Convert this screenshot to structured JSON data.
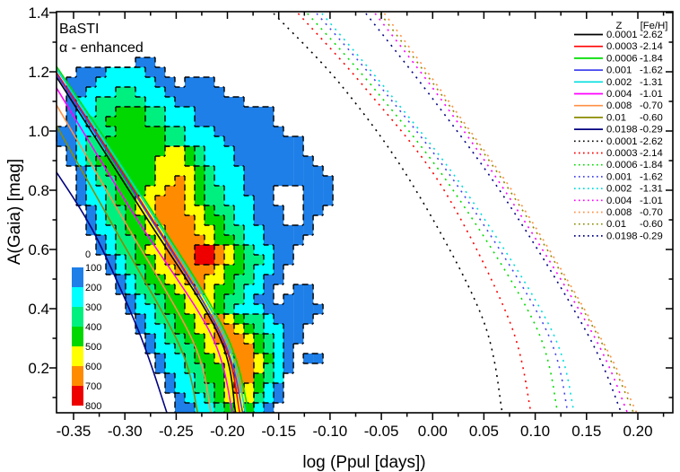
{
  "figure": {
    "title": "BaSTI",
    "subtitle": "α - enhanced"
  },
  "axes": {
    "x": {
      "label": "log (Ppul [days])",
      "major_values": [
        -0.35,
        -0.3,
        -0.25,
        -0.2,
        -0.15,
        -0.1,
        -0.05,
        0.0,
        0.05,
        0.1,
        0.15,
        0.2
      ],
      "major_labels": [
        "-0.35",
        "-0.30",
        "-0.25",
        "-0.20",
        "-0.15",
        "-0.10",
        "-0.05",
        "0.00",
        "0.05",
        "0.10",
        "0.15",
        "0.20"
      ],
      "minor_values": [
        -0.325,
        -0.275,
        -0.225,
        -0.175,
        -0.125,
        -0.075,
        -0.025,
        0.025,
        0.075,
        0.125,
        0.175,
        0.225
      ],
      "range": [
        -0.3666,
        0.234
      ]
    },
    "y": {
      "label": "A(Gaia) [mag]",
      "major_values": [
        0.2,
        0.4,
        0.6,
        0.8,
        1.0,
        1.2,
        1.4
      ],
      "major_labels": [
        "0.2",
        "0.4",
        "0.6",
        "0.8",
        "1.0",
        "1.2",
        "1.4"
      ],
      "minor_values": [
        0.1,
        0.3,
        0.5,
        0.7,
        0.9,
        1.1,
        1.3
      ],
      "range": [
        0.048,
        1.4
      ]
    }
  },
  "colorbar": {
    "labels": [
      "0",
      "100",
      "200",
      "300",
      "400",
      "500",
      "600",
      "700",
      "800"
    ],
    "colors": [
      "#1E7FE8",
      "#00FFFF",
      "#00F07F",
      "#00D800",
      "#FFFF00",
      "#FF8C00",
      "#EE0000"
    ]
  },
  "legend": {
    "header_z": "Z",
    "header_feh": "[Fe/H]",
    "entries": [
      {
        "z": "0.0001",
        "feh": "-2.62",
        "color": "#000000"
      },
      {
        "z": "0.0003",
        "feh": "-2.14",
        "color": "#FF0000"
      },
      {
        "z": "0.0006",
        "feh": "-1.84",
        "color": "#00DD00"
      },
      {
        "z": "0.001",
        "feh": "-1.62",
        "color": "#4444EE"
      },
      {
        "z": "0.002",
        "feh": "-1.31",
        "color": "#00DDDD"
      },
      {
        "z": "0.004",
        "feh": "-1.01",
        "color": "#FF00FF"
      },
      {
        "z": "0.008",
        "feh": "-0.70",
        "color": "#FF9044"
      },
      {
        "z": "0.01",
        "feh": "-0.60",
        "color": "#8B8B00"
      },
      {
        "z": "0.0198",
        "feh": "-0.29",
        "color": "#000080"
      }
    ]
  },
  "chart_data": {
    "type": "heatmap",
    "title": "BaSTI α-enhanced pulsation model edges over observed star-count density map",
    "xlabel": "log (Ppul [days])",
    "ylabel": "A(Gaia) [mag]",
    "xlim": [
      -0.3666,
      0.234
    ],
    "ylim": [
      0.048,
      1.4
    ],
    "grid": false,
    "legend_position": "top-right-inside",
    "density_levels": [
      0,
      100,
      200,
      300,
      400,
      500,
      600,
      700,
      800
    ],
    "density_colors": [
      "#1E7FE8",
      "#00FFFF",
      "#00F07F",
      "#00D800",
      "#FFFF00",
      "#FF8C00",
      "#EE0000"
    ],
    "contour_style": "dashed-black",
    "heatmap_grid": {
      "x0": -0.3666,
      "y_top": 1.2485,
      "cell_dx": 0.00962,
      "cell_dy": 0.033333,
      "rows": [
        "0000000011000000000000000000",
        "0011122221100000000000000000",
        "0111222222110111000000000000",
        "0112223322211111100000000000",
        "0122333332221111111000000000",
        "0122334443322211111111000000",
        "0123344443322211111111000000",
        "1122334444433222111111100000",
        "1123344444433222211111111000",
        "0123344444455432221111111000",
        "0123444444555432221111111100",
        "0012344444555543222111111110",
        "0012334444556543222111111111",
        "0012234445566543322111000111",
        "0012234455666543322211000111",
        "0001233455666554332211100110",
        "0001233445666654432211100100",
        "0001223445566655433221111100",
        "0000123344566665443221111000",
        "0000123345566677654322110000",
        "0000012344566677654332110000",
        "0000012334556666544322100000",
        "0000001234455665543321100000",
        "0000001233445565443221001100",
        "0000000123344555433211011100",
        "0000000122344555432221111110",
        "0000000012334456654332111100",
        "0000000012234455665432211000",
        "0000000001233445666543211000",
        "0000000001223345566643210000",
        "0000000000122344556654210110",
        "0000000000122334456653210000",
        "0000000000012234456643200000",
        "0000000000012233456542100000",
        "0000000000001223455532100000",
        "0000000000001122345421000000"
      ]
    },
    "solid_curves": [
      {
        "z": "0.0001",
        "feh": "-2.62",
        "color": "#000000",
        "points": [
          [
            -0.3666,
            1.182
          ],
          [
            -0.286,
            0.745
          ],
          [
            -0.209,
            0.315
          ],
          [
            -0.192,
            0.048
          ]
        ]
      },
      {
        "z": "0.0003",
        "feh": "-2.14",
        "color": "#FF0000",
        "points": [
          [
            -0.3666,
            1.197
          ],
          [
            -0.284,
            0.761
          ],
          [
            -0.2075,
            0.318
          ],
          [
            -0.188,
            0.048
          ]
        ]
      },
      {
        "z": "0.0006",
        "feh": "-1.84",
        "color": "#00DD00",
        "points": [
          [
            -0.3666,
            1.218
          ],
          [
            -0.282,
            0.776
          ],
          [
            -0.203,
            0.327
          ],
          [
            -0.179,
            0.048
          ]
        ]
      },
      {
        "z": "0.001",
        "feh": "-1.62",
        "color": "#4444EE",
        "points": [
          [
            -0.3666,
            1.191
          ],
          [
            -0.2836,
            0.752
          ],
          [
            -0.2066,
            0.315
          ],
          [
            -0.185,
            0.048
          ]
        ]
      },
      {
        "z": "0.002",
        "feh": "-1.31",
        "color": "#00DDDD",
        "points": [
          [
            -0.3666,
            1.209
          ],
          [
            -0.2827,
            0.77
          ],
          [
            -0.2049,
            0.324
          ],
          [
            -0.182,
            0.048
          ]
        ]
      },
      {
        "z": "0.004",
        "feh": "-1.01",
        "color": "#FF00FF",
        "points": [
          [
            -0.3666,
            1.145
          ],
          [
            -0.2906,
            0.715
          ],
          [
            -0.2162,
            0.315
          ],
          [
            -0.195,
            0.048
          ]
        ]
      },
      {
        "z": "0.008",
        "feh": "-0.70",
        "color": "#FF9044",
        "points": [
          [
            -0.3666,
            1.088
          ],
          [
            -0.3037,
            0.715
          ],
          [
            -0.2337,
            0.291
          ],
          [
            -0.216,
            0.048
          ]
        ]
      },
      {
        "z": "0.01",
        "feh": "-0.60",
        "color": "#8B8B00",
        "points": [
          [
            -0.3666,
            1.018
          ],
          [
            -0.3124,
            0.685
          ],
          [
            -0.2468,
            0.276
          ],
          [
            -0.229,
            0.048
          ]
        ]
      },
      {
        "z": "0.0198",
        "feh": "-0.29",
        "color": "#000080",
        "points": [
          [
            -0.3666,
            0.861
          ],
          [
            -0.3299,
            0.655
          ],
          [
            -0.2862,
            0.321
          ],
          [
            -0.259,
            0.048
          ]
        ]
      }
    ],
    "dotted_curves": [
      {
        "z": "0.0001",
        "feh": "-2.62",
        "color": "#000000",
        "points": [
          [
            -0.155,
            1.397
          ],
          [
            -0.089,
            1.154
          ],
          [
            -0.02,
            0.821
          ],
          [
            0.048,
            0.373
          ],
          [
            0.068,
            0.048
          ]
        ]
      },
      {
        "z": "0.0003",
        "feh": "-2.14",
        "color": "#FF0000",
        "points": [
          [
            -0.131,
            1.397
          ],
          [
            -0.066,
            1.146
          ],
          [
            0.009,
            0.812
          ],
          [
            0.075,
            0.358
          ],
          [
            0.096,
            0.048
          ]
        ]
      },
      {
        "z": "0.0006",
        "feh": "-1.84",
        "color": "#00DD00",
        "points": [
          [
            -0.122,
            1.397
          ],
          [
            -0.056,
            1.139
          ],
          [
            0.02,
            0.8
          ],
          [
            0.1,
            0.345
          ],
          [
            0.122,
            0.048
          ]
        ]
      },
      {
        "z": "0.001",
        "feh": "-1.62",
        "color": "#4444EE",
        "points": [
          [
            -0.113,
            1.397
          ],
          [
            -0.047,
            1.133
          ],
          [
            0.029,
            0.791
          ],
          [
            0.11,
            0.333
          ],
          [
            0.132,
            0.048
          ]
        ]
      },
      {
        "z": "0.002",
        "feh": "-1.31",
        "color": "#00DDDD",
        "points": [
          [
            -0.108,
            1.397
          ],
          [
            -0.042,
            1.127
          ],
          [
            0.035,
            0.782
          ],
          [
            0.116,
            0.327
          ],
          [
            0.138,
            0.048
          ]
        ]
      },
      {
        "z": "0.004",
        "feh": "-1.01",
        "color": "#FF00FF",
        "points": [
          [
            -0.056,
            1.397
          ],
          [
            0.009,
            1.103
          ],
          [
            0.078,
            0.758
          ],
          [
            0.157,
            0.309
          ],
          [
            0.19,
            0.048
          ]
        ]
      },
      {
        "z": "0.008",
        "feh": "-0.70",
        "color": "#FF9044",
        "points": [
          [
            -0.047,
            1.397
          ],
          [
            0.017,
            1.094
          ],
          [
            0.087,
            0.748
          ],
          [
            0.164,
            0.3
          ],
          [
            0.199,
            0.048
          ]
        ]
      },
      {
        "z": "0.01",
        "feh": "-0.60",
        "color": "#8B8B00",
        "points": [
          [
            -0.051,
            1.397
          ],
          [
            0.014,
            1.097
          ],
          [
            0.084,
            0.752
          ],
          [
            0.162,
            0.303
          ],
          [
            0.196,
            0.048
          ]
        ]
      },
      {
        "z": "0.0198",
        "feh": "-0.29",
        "color": "#000080",
        "points": [
          [
            -0.065,
            1.397
          ],
          [
            0.0,
            1.109
          ],
          [
            0.071,
            0.77
          ],
          [
            0.151,
            0.315
          ],
          [
            0.184,
            0.048
          ]
        ]
      }
    ]
  }
}
